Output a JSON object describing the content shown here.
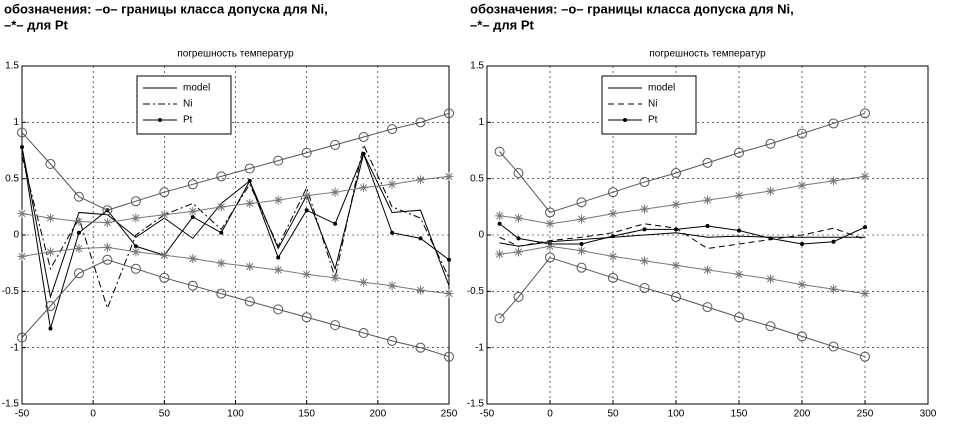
{
  "chart_data": [
    {
      "type": "line",
      "caption": [
        "обозначения: –o– границы класса допуска для Ni,",
        "–*– для Pt"
      ],
      "title": "погрешность температур",
      "x": [
        -50,
        -30,
        -10,
        10,
        30,
        50,
        70,
        90,
        110,
        130,
        150,
        170,
        190,
        210,
        230,
        250
      ],
      "xlim": [
        -50,
        250
      ],
      "xticks": [
        -50,
        0,
        50,
        100,
        150,
        200,
        250
      ],
      "ylim": [
        -1.5,
        1.5
      ],
      "yticks": [
        -1.5,
        -1,
        -0.5,
        0,
        0.5,
        1,
        1.5
      ],
      "grid": true,
      "legend": "upper left",
      "series": [
        {
          "name": "model",
          "color": "#000000",
          "style": "solid",
          "marker": "none",
          "values": [
            0.78,
            -0.55,
            0.2,
            0.18,
            -0.02,
            0.15,
            -0.03,
            0.28,
            0.48,
            -0.12,
            0.35,
            -0.3,
            0.72,
            0.2,
            0.22,
            -0.45
          ]
        },
        {
          "name": "Ni",
          "color": "#000000",
          "style": "dashdot",
          "marker": "none",
          "values": [
            0.7,
            -0.3,
            0.15,
            -0.65,
            0.0,
            0.18,
            0.28,
            0.05,
            0.45,
            -0.1,
            0.42,
            -0.38,
            0.8,
            0.25,
            0.15,
            -0.38
          ]
        },
        {
          "name": "Pt",
          "color": "#000000",
          "style": "solid",
          "marker": "dot",
          "values": [
            0.78,
            -0.83,
            0.02,
            0.22,
            -0.1,
            -0.18,
            0.16,
            0.02,
            0.48,
            -0.2,
            0.22,
            0.1,
            0.72,
            0.02,
            -0.03,
            -0.22
          ]
        },
        {
          "color": "#555555",
          "style": "solid",
          "marker": "circle",
          "values": [
            0.91,
            0.63,
            0.34,
            0.22,
            0.3,
            0.38,
            0.45,
            0.52,
            0.59,
            0.66,
            0.73,
            0.8,
            0.87,
            0.94,
            1.0,
            1.08
          ]
        },
        {
          "color": "#555555",
          "style": "solid",
          "marker": "circle",
          "values": [
            -0.91,
            -0.63,
            -0.34,
            -0.22,
            -0.3,
            -0.38,
            -0.45,
            -0.52,
            -0.59,
            -0.66,
            -0.73,
            -0.8,
            -0.87,
            -0.94,
            -1.0,
            -1.08
          ]
        },
        {
          "color": "#777777",
          "style": "solid",
          "marker": "star",
          "values": [
            0.19,
            0.15,
            0.12,
            0.11,
            0.15,
            0.18,
            0.21,
            0.25,
            0.28,
            0.31,
            0.35,
            0.38,
            0.42,
            0.45,
            0.49,
            0.52
          ]
        },
        {
          "color": "#777777",
          "style": "solid",
          "marker": "star",
          "values": [
            -0.19,
            -0.15,
            -0.12,
            -0.11,
            -0.15,
            -0.18,
            -0.21,
            -0.25,
            -0.28,
            -0.31,
            -0.35,
            -0.38,
            -0.42,
            -0.45,
            -0.49,
            -0.52
          ]
        }
      ]
    },
    {
      "type": "line",
      "caption": [
        "обозначения: –o– границы класса допуска для Ni,",
        "–*– для Pt"
      ],
      "title": "погрешность температур",
      "x": [
        -40,
        -25,
        0,
        25,
        50,
        75,
        100,
        125,
        150,
        175,
        200,
        225,
        250
      ],
      "xlim": [
        -50,
        300
      ],
      "xticks": [
        -50,
        0,
        50,
        100,
        150,
        200,
        250,
        300
      ],
      "ylim": [
        -1.5,
        1.5
      ],
      "yticks": [
        -1.5,
        -1,
        -0.5,
        0,
        0.5,
        1,
        1.5
      ],
      "grid": true,
      "legend": "upper left",
      "series": [
        {
          "name": "model",
          "color": "#000000",
          "style": "solid",
          "marker": "none",
          "values": [
            -0.07,
            -0.1,
            -0.06,
            -0.04,
            -0.02,
            0.0,
            0.02,
            -0.02,
            -0.01,
            -0.02,
            -0.02,
            -0.02,
            -0.02
          ]
        },
        {
          "name": "Ni",
          "color": "#000000",
          "style": "dashed",
          "marker": "none",
          "values": [
            -0.02,
            -0.1,
            -0.05,
            -0.02,
            0.02,
            0.1,
            0.06,
            -0.12,
            -0.08,
            -0.04,
            0.0,
            0.06,
            -0.04
          ]
        },
        {
          "name": "Pt",
          "color": "#000000",
          "style": "solid",
          "marker": "dot",
          "values": [
            0.1,
            -0.03,
            -0.08,
            -0.08,
            -0.01,
            0.05,
            0.05,
            0.08,
            0.04,
            -0.03,
            -0.08,
            -0.06,
            0.07
          ]
        },
        {
          "color": "#555555",
          "style": "solid",
          "marker": "circle",
          "values": [
            0.74,
            0.55,
            0.2,
            0.29,
            0.38,
            0.47,
            0.55,
            0.64,
            0.73,
            0.81,
            0.9,
            0.99,
            1.08
          ]
        },
        {
          "color": "#555555",
          "style": "solid",
          "marker": "circle",
          "values": [
            -0.74,
            -0.55,
            -0.2,
            -0.29,
            -0.38,
            -0.47,
            -0.55,
            -0.64,
            -0.73,
            -0.81,
            -0.9,
            -0.99,
            -1.08
          ]
        },
        {
          "color": "#777777",
          "style": "solid",
          "marker": "star",
          "values": [
            0.17,
            0.15,
            0.1,
            0.14,
            0.19,
            0.23,
            0.27,
            0.31,
            0.35,
            0.39,
            0.44,
            0.48,
            0.52
          ]
        },
        {
          "color": "#777777",
          "style": "solid",
          "marker": "star",
          "values": [
            -0.17,
            -0.15,
            -0.1,
            -0.14,
            -0.19,
            -0.23,
            -0.27,
            -0.31,
            -0.35,
            -0.39,
            -0.44,
            -0.48,
            -0.52
          ]
        }
      ]
    }
  ]
}
